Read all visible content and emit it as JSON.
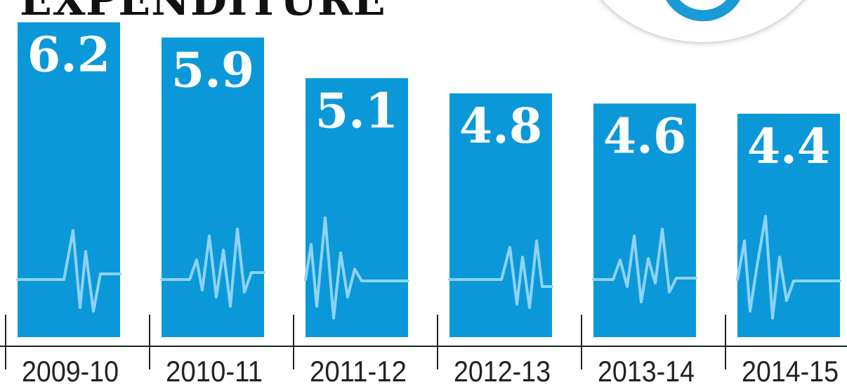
{
  "title": "EXPENDITURE",
  "colors": {
    "bar": "#0b98d9",
    "pulse": "#8fd3f4",
    "label": "#ffffff",
    "axis": "#222222"
  },
  "chart_data": {
    "type": "bar",
    "categories": [
      "2009-10",
      "2010-11",
      "2011-12",
      "2012-13",
      "2013-14",
      "2014-15"
    ],
    "values": [
      6.2,
      5.9,
      5.1,
      4.8,
      4.6,
      4.4
    ],
    "title": "EXPENDITURE",
    "xlabel": "",
    "ylabel": "",
    "data_labels": [
      "6.2",
      "5.9",
      "5.1",
      "4.8",
      "4.6",
      "4.4"
    ],
    "grid": false,
    "legend": "none"
  }
}
